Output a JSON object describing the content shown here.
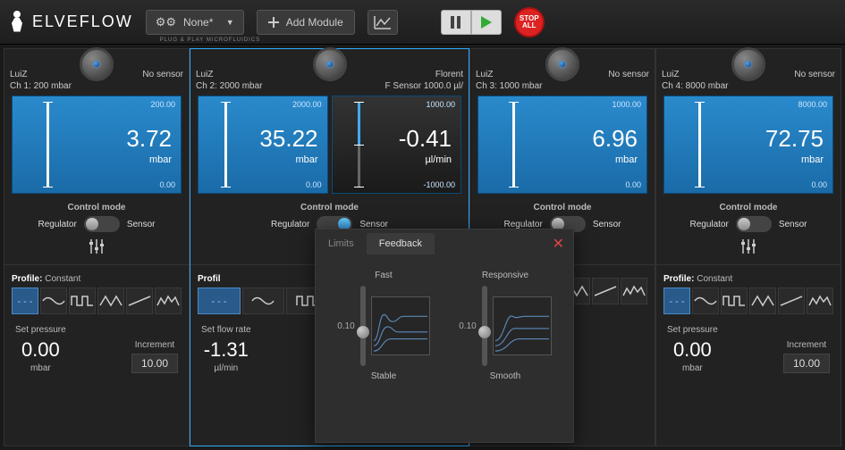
{
  "brand": {
    "name": "ELVEFLOW",
    "tagline": "PLUG & PLAY MICROFLUIDICS"
  },
  "toolbar": {
    "preset": "None*",
    "add_module": "Add Module",
    "stop_all": "STOP\nALL"
  },
  "channels": [
    {
      "name": "LuiZ",
      "sub": "Ch 1: 200 mbar",
      "right_name": "",
      "right_sub": "No sensor",
      "gauges": [
        {
          "max": "200.00",
          "min": "0.00",
          "mid": false,
          "value": "3.72",
          "unit": "mbar",
          "flow": false
        }
      ],
      "control_mode": "Control mode",
      "reg": "Regulator",
      "sens": "Sensor",
      "toggle_on": false,
      "profile_word": "Profile:",
      "profile_type": "Constant",
      "set_label": "Set pressure",
      "set_val": "0.00",
      "set_unit": "mbar",
      "inc_label": "Increment",
      "inc_val": "10.00",
      "selected": false,
      "wide": false
    },
    {
      "name": "LuiZ",
      "sub": "Ch 2: 2000 mbar",
      "right_name": "Florent",
      "right_sub": "F Sensor 1000.0 µl/",
      "gauges": [
        {
          "max": "2000.00",
          "min": "0.00",
          "mid": false,
          "value": "35.22",
          "unit": "mbar",
          "flow": false
        },
        {
          "max": "1000.00",
          "min": "-1000.00",
          "mid": true,
          "value": "-0.41",
          "unit": "µl/min",
          "flow": true
        }
      ],
      "control_mode": "Control mode",
      "reg": "Regulator",
      "sens": "Sensor",
      "toggle_on": true,
      "profile_word": "Profil",
      "profile_type": "",
      "set_label": "Set flow rate",
      "set_val": "-1.31",
      "set_unit": "µl/min",
      "inc_label": "",
      "inc_val": "",
      "selected": true,
      "wide": true
    },
    {
      "name": "LuiZ",
      "sub": "Ch 3: 1000 mbar",
      "right_name": "",
      "right_sub": "No sensor",
      "gauges": [
        {
          "max": "1000.00",
          "min": "0.00",
          "mid": false,
          "value": "6.96",
          "unit": "mbar",
          "flow": false
        }
      ],
      "control_mode": "Control mode",
      "reg": "Regulator",
      "sens": "Sensor",
      "toggle_on": false,
      "profile_word": "",
      "profile_type": "",
      "set_label": "",
      "set_val": "",
      "set_unit": "",
      "inc_label": "",
      "inc_val": "",
      "selected": false,
      "wide": false
    },
    {
      "name": "LuiZ",
      "sub": "Ch 4: 8000 mbar",
      "right_name": "",
      "right_sub": "No sensor",
      "gauges": [
        {
          "max": "8000.00",
          "min": "0.00",
          "mid": false,
          "value": "72.75",
          "unit": "mbar",
          "flow": false
        }
      ],
      "control_mode": "Control mode",
      "reg": "Regulator",
      "sens": "Sensor",
      "toggle_on": false,
      "profile_word": "Profile:",
      "profile_type": "Constant",
      "set_label": "Set pressure",
      "set_val": "0.00",
      "set_unit": "mbar",
      "inc_label": "Increment",
      "inc_val": "10.00",
      "selected": false,
      "wide": false
    }
  ],
  "popup": {
    "tab1": "Limits",
    "tab2": "Feedback",
    "col1_top": "Fast",
    "col1_val": "0.10",
    "col1_bot": "Stable",
    "col2_top": "Responsive",
    "col2_val": "0.10",
    "col2_bot": "Smooth"
  },
  "colors": {
    "accent": "#3a9ff0",
    "gauge_bg": "#2a8acc",
    "stop": "#d22",
    "play": "#3a3"
  }
}
